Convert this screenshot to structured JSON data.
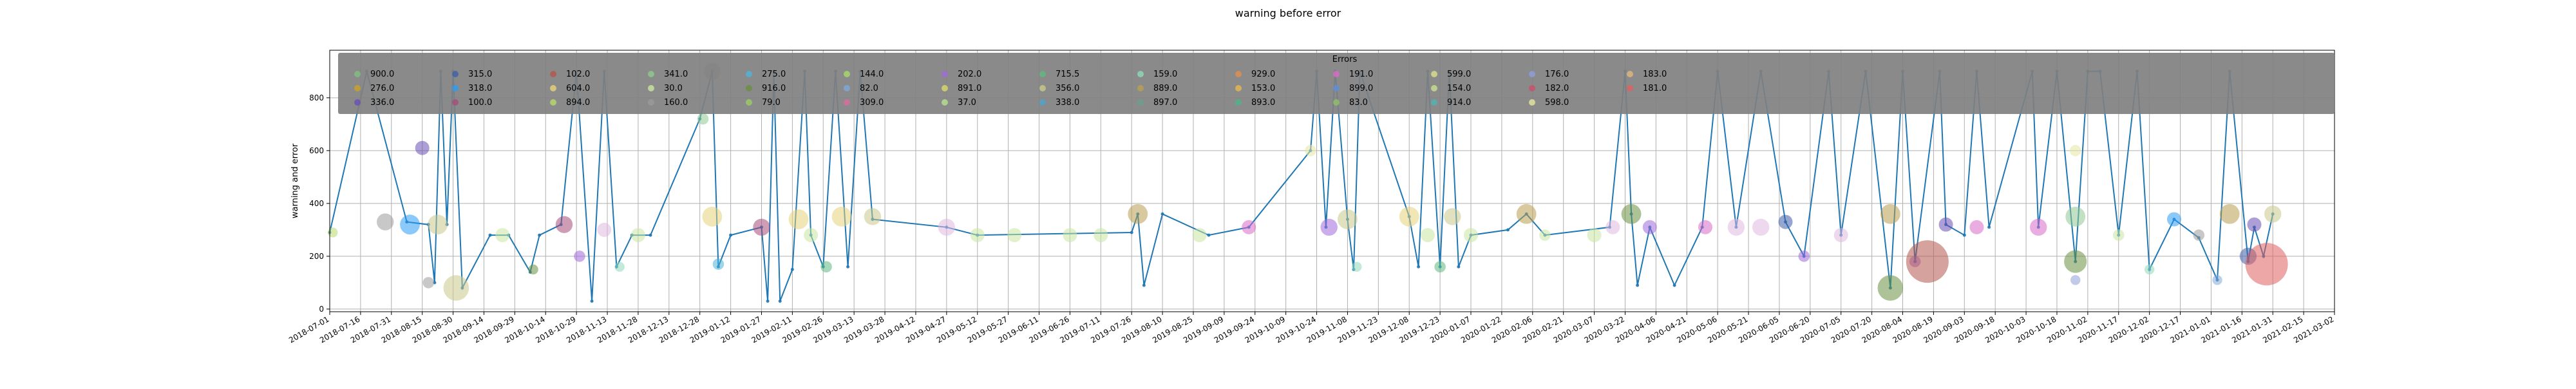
{
  "chart_data": {
    "type": "scatter",
    "title": "warning before error",
    "xlabel": "",
    "ylabel": "warning and error",
    "ylim": [
      -10,
      980
    ],
    "y_ticks": [
      0,
      200,
      400,
      600,
      800
    ],
    "grid": true,
    "legend_title": "Errors",
    "legend_position": "top-center",
    "x_tick_labels": [
      "2018-07-01",
      "2018-07-16",
      "2018-07-31",
      "2018-08-15",
      "2018-08-30",
      "2018-09-14",
      "2018-09-29",
      "2018-10-14",
      "2018-10-29",
      "2018-11-13",
      "2018-11-28",
      "2018-12-13",
      "2018-12-28",
      "2019-01-12",
      "2019-01-27",
      "2019-02-11",
      "2019-02-26",
      "2019-03-13",
      "2019-03-28",
      "2019-04-12",
      "2019-04-27",
      "2019-05-12",
      "2019-05-27",
      "2019-06-11",
      "2019-06-26",
      "2019-07-11",
      "2019-07-26",
      "2019-08-10",
      "2019-08-25",
      "2019-09-09",
      "2019-09-24",
      "2019-10-09",
      "2019-10-24",
      "2019-11-08",
      "2019-11-23",
      "2019-12-08",
      "2019-12-23",
      "2020-01-07",
      "2020-01-22",
      "2020-02-06",
      "2020-02-21",
      "2020-03-07",
      "2020-03-22",
      "2020-04-06",
      "2020-04-21",
      "2020-05-06",
      "2020-05-21",
      "2020-06-05",
      "2020-06-20",
      "2020-07-05",
      "2020-07-20",
      "2020-08-04",
      "2020-08-19",
      "2020-09-03",
      "2020-09-18",
      "2020-10-03",
      "2020-10-18",
      "2020-11-02",
      "2020-11-17",
      "2020-12-02",
      "2020-12-17",
      "2021-01-01",
      "2021-01-16",
      "2021-01-31",
      "2021-02-15",
      "2021-03-02"
    ],
    "legend_entries": [
      {
        "label": "900.0",
        "color": "#7fbf7f"
      },
      {
        "label": "276.0",
        "color": "#c9a227"
      },
      {
        "label": "336.0",
        "color": "#6a4fb3"
      },
      {
        "label": "315.0",
        "color": "#3f5fa8"
      },
      {
        "label": "318.0",
        "color": "#2a9df4"
      },
      {
        "label": "100.0",
        "color": "#a64d79"
      },
      {
        "label": "102.0",
        "color": "#b3564d"
      },
      {
        "label": "604.0",
        "color": "#e6d27a"
      },
      {
        "label": "894.0",
        "color": "#b8d96b"
      },
      {
        "label": "341.0",
        "color": "#8fc98f"
      },
      {
        "label": "30.0",
        "color": "#c8e6a0"
      },
      {
        "label": "160.0",
        "color": "#9a9a9a"
      },
      {
        "label": "275.0",
        "color": "#4fb3d9"
      },
      {
        "label": "916.0",
        "color": "#6a8f3f"
      },
      {
        "label": "79.0",
        "color": "#9ccc65"
      },
      {
        "label": "144.0",
        "color": "#a6d96a"
      },
      {
        "label": "82.0",
        "color": "#7fa8d9"
      },
      {
        "label": "309.0",
        "color": "#d96aa0"
      },
      {
        "label": "202.0",
        "color": "#9f6ad9"
      },
      {
        "label": "891.0",
        "color": "#d9d96a"
      },
      {
        "label": "37.0",
        "color": "#b8e08f"
      },
      {
        "label": "715.5",
        "color": "#5fb87f"
      },
      {
        "label": "356.0",
        "color": "#c9c98a"
      },
      {
        "label": "338.0",
        "color": "#4fa3c9"
      },
      {
        "label": "159.0",
        "color": "#8fd9b8"
      },
      {
        "label": "889.0",
        "color": "#b89f4f"
      },
      {
        "label": "897.0",
        "color": "#6a9f8f"
      },
      {
        "label": "929.0",
        "color": "#e08f4f"
      },
      {
        "label": "153.0",
        "color": "#e6b84f"
      },
      {
        "label": "893.0",
        "color": "#4fb38a"
      },
      {
        "label": "191.0",
        "color": "#d96acb"
      },
      {
        "label": "899.0",
        "color": "#5f8fd9"
      },
      {
        "label": "83.0",
        "color": "#8fbf6a"
      },
      {
        "label": "599.0",
        "color": "#d9e08f"
      },
      {
        "label": "154.0",
        "color": "#c9e08f"
      },
      {
        "label": "914.0",
        "color": "#4fb3b3"
      },
      {
        "label": "176.0",
        "color": "#8f9fd9"
      },
      {
        "label": "182.0",
        "color": "#c94f6a"
      },
      {
        "label": "598.0",
        "color": "#e6e6a0"
      },
      {
        "label": "183.0",
        "color": "#e0b87f"
      },
      {
        "label": "181.0",
        "color": "#e05f5f"
      }
    ],
    "series": [
      {
        "name": "warning_line",
        "color": "#1f77b4",
        "points": [
          {
            "x": 0.0,
            "y": 290
          },
          {
            "x": 1.2,
            "y": 900
          },
          {
            "x": 2.5,
            "y": 330
          },
          {
            "x": 3.2,
            "y": 320
          },
          {
            "x": 3.4,
            "y": 100
          },
          {
            "x": 3.6,
            "y": 900
          },
          {
            "x": 3.8,
            "y": 320
          },
          {
            "x": 4.0,
            "y": 900
          },
          {
            "x": 4.3,
            "y": 80
          },
          {
            "x": 5.2,
            "y": 280
          },
          {
            "x": 5.8,
            "y": 280
          },
          {
            "x": 6.5,
            "y": 140
          },
          {
            "x": 6.8,
            "y": 280
          },
          {
            "x": 7.5,
            "y": 320
          },
          {
            "x": 8.0,
            "y": 900
          },
          {
            "x": 8.5,
            "y": 30
          },
          {
            "x": 8.9,
            "y": 900
          },
          {
            "x": 9.3,
            "y": 160
          },
          {
            "x": 9.8,
            "y": 280
          },
          {
            "x": 10.4,
            "y": 280
          },
          {
            "x": 12.0,
            "y": 720
          },
          {
            "x": 12.4,
            "y": 900
          },
          {
            "x": 12.6,
            "y": 160
          },
          {
            "x": 13.0,
            "y": 280
          },
          {
            "x": 14.0,
            "y": 310
          },
          {
            "x": 14.2,
            "y": 30
          },
          {
            "x": 14.4,
            "y": 900
          },
          {
            "x": 14.6,
            "y": 30
          },
          {
            "x": 15.0,
            "y": 150
          },
          {
            "x": 15.4,
            "y": 900
          },
          {
            "x": 15.6,
            "y": 280
          },
          {
            "x": 16.0,
            "y": 160
          },
          {
            "x": 16.4,
            "y": 900
          },
          {
            "x": 16.8,
            "y": 160
          },
          {
            "x": 17.2,
            "y": 900
          },
          {
            "x": 17.6,
            "y": 340
          },
          {
            "x": 20.0,
            "y": 310
          },
          {
            "x": 21.0,
            "y": 280
          },
          {
            "x": 26.0,
            "y": 290
          },
          {
            "x": 26.2,
            "y": 360
          },
          {
            "x": 26.4,
            "y": 90
          },
          {
            "x": 27.0,
            "y": 360
          },
          {
            "x": 28.5,
            "y": 280
          },
          {
            "x": 29.8,
            "y": 310
          },
          {
            "x": 31.8,
            "y": 600
          },
          {
            "x": 32.0,
            "y": 900
          },
          {
            "x": 32.3,
            "y": 310
          },
          {
            "x": 32.6,
            "y": 900
          },
          {
            "x": 33.0,
            "y": 340
          },
          {
            "x": 33.2,
            "y": 150
          },
          {
            "x": 33.4,
            "y": 900
          },
          {
            "x": 35.0,
            "y": 350
          },
          {
            "x": 35.3,
            "y": 160
          },
          {
            "x": 35.6,
            "y": 900
          },
          {
            "x": 36.0,
            "y": 160
          },
          {
            "x": 36.3,
            "y": 900
          },
          {
            "x": 36.6,
            "y": 160
          },
          {
            "x": 37.0,
            "y": 280
          },
          {
            "x": 38.2,
            "y": 300
          },
          {
            "x": 38.8,
            "y": 360
          },
          {
            "x": 39.4,
            "y": 280
          },
          {
            "x": 41.5,
            "y": 310
          },
          {
            "x": 42.0,
            "y": 900
          },
          {
            "x": 42.2,
            "y": 360
          },
          {
            "x": 42.4,
            "y": 90
          },
          {
            "x": 42.8,
            "y": 310
          },
          {
            "x": 43.6,
            "y": 90
          },
          {
            "x": 44.5,
            "y": 310
          },
          {
            "x": 45.0,
            "y": 900
          },
          {
            "x": 45.6,
            "y": 310
          },
          {
            "x": 46.4,
            "y": 900
          },
          {
            "x": 47.2,
            "y": 330
          },
          {
            "x": 47.8,
            "y": 200
          },
          {
            "x": 48.6,
            "y": 900
          },
          {
            "x": 49.0,
            "y": 280
          },
          {
            "x": 49.8,
            "y": 900
          },
          {
            "x": 50.6,
            "y": 80
          },
          {
            "x": 51.0,
            "y": 900
          },
          {
            "x": 51.4,
            "y": 180
          },
          {
            "x": 52.2,
            "y": 900
          },
          {
            "x": 52.4,
            "y": 320
          },
          {
            "x": 53.0,
            "y": 280
          },
          {
            "x": 53.4,
            "y": 900
          },
          {
            "x": 53.8,
            "y": 310
          },
          {
            "x": 55.2,
            "y": 900
          },
          {
            "x": 55.4,
            "y": 310
          },
          {
            "x": 56.0,
            "y": 900
          },
          {
            "x": 56.6,
            "y": 180
          },
          {
            "x": 57.0,
            "y": 900
          },
          {
            "x": 57.4,
            "y": 900
          },
          {
            "x": 58.0,
            "y": 280
          },
          {
            "x": 58.6,
            "y": 900
          },
          {
            "x": 59.0,
            "y": 150
          },
          {
            "x": 59.8,
            "y": 340
          },
          {
            "x": 60.6,
            "y": 270
          },
          {
            "x": 61.2,
            "y": 110
          },
          {
            "x": 61.6,
            "y": 900
          },
          {
            "x": 62.2,
            "y": 180
          },
          {
            "x": 62.4,
            "y": 310
          },
          {
            "x": 62.7,
            "y": 200
          },
          {
            "x": 63.0,
            "y": 360
          }
        ]
      }
    ],
    "bubbles": [
      {
        "x": 0.1,
        "y": 290,
        "r": 7,
        "color": "#b8d96b"
      },
      {
        "x": 1.8,
        "y": 330,
        "r": 12,
        "color": "#9a9a9a"
      },
      {
        "x": 2.6,
        "y": 320,
        "r": 14,
        "color": "#2a9df4"
      },
      {
        "x": 3.0,
        "y": 610,
        "r": 10,
        "color": "#6a4fb3"
      },
      {
        "x": 3.2,
        "y": 100,
        "r": 8,
        "color": "#9a9a9a"
      },
      {
        "x": 3.5,
        "y": 320,
        "r": 14,
        "color": "#c9c98a"
      },
      {
        "x": 4.1,
        "y": 80,
        "r": 18,
        "color": "#c9c98a"
      },
      {
        "x": 5.6,
        "y": 280,
        "r": 10,
        "color": "#c8e6a0"
      },
      {
        "x": 6.6,
        "y": 150,
        "r": 7,
        "color": "#6a8f3f"
      },
      {
        "x": 7.6,
        "y": 320,
        "r": 12,
        "color": "#a64d79"
      },
      {
        "x": 8.1,
        "y": 200,
        "r": 8,
        "color": "#9f6ad9"
      },
      {
        "x": 8.9,
        "y": 300,
        "r": 10,
        "color": "#e0b8e0"
      },
      {
        "x": 9.4,
        "y": 160,
        "r": 7,
        "color": "#8fd9b8"
      },
      {
        "x": 10.0,
        "y": 280,
        "r": 10,
        "color": "#c8e6a0"
      },
      {
        "x": 12.1,
        "y": 720,
        "r": 8,
        "color": "#8fc98f"
      },
      {
        "x": 12.4,
        "y": 900,
        "r": 12,
        "color": "#9a9a9a"
      },
      {
        "x": 12.4,
        "y": 350,
        "r": 14,
        "color": "#e6d27a"
      },
      {
        "x": 12.6,
        "y": 170,
        "r": 8,
        "color": "#4fb3d9"
      },
      {
        "x": 14.0,
        "y": 310,
        "r": 12,
        "color": "#a64d79"
      },
      {
        "x": 15.2,
        "y": 340,
        "r": 14,
        "color": "#e6d27a"
      },
      {
        "x": 15.6,
        "y": 280,
        "r": 10,
        "color": "#c8e6a0"
      },
      {
        "x": 16.1,
        "y": 160,
        "r": 8,
        "color": "#5fb87f"
      },
      {
        "x": 16.6,
        "y": 350,
        "r": 14,
        "color": "#e6d27a"
      },
      {
        "x": 17.6,
        "y": 350,
        "r": 12,
        "color": "#c9c98a"
      },
      {
        "x": 20.0,
        "y": 310,
        "r": 12,
        "color": "#e0b8e0"
      },
      {
        "x": 21.0,
        "y": 280,
        "r": 10,
        "color": "#c8e6a0"
      },
      {
        "x": 22.2,
        "y": 280,
        "r": 10,
        "color": "#c8e6a0"
      },
      {
        "x": 24.0,
        "y": 280,
        "r": 10,
        "color": "#c8e6a0"
      },
      {
        "x": 25.0,
        "y": 280,
        "r": 10,
        "color": "#c8e6a0"
      },
      {
        "x": 26.2,
        "y": 360,
        "r": 14,
        "color": "#b89f4f"
      },
      {
        "x": 28.2,
        "y": 280,
        "r": 10,
        "color": "#c8e6a0"
      },
      {
        "x": 29.8,
        "y": 310,
        "r": 10,
        "color": "#d96acb"
      },
      {
        "x": 31.8,
        "y": 600,
        "r": 8,
        "color": "#e6e6a0"
      },
      {
        "x": 32.4,
        "y": 310,
        "r": 12,
        "color": "#9f6ad9"
      },
      {
        "x": 33.0,
        "y": 340,
        "r": 14,
        "color": "#c9c98a"
      },
      {
        "x": 33.3,
        "y": 160,
        "r": 7,
        "color": "#8fd9b8"
      },
      {
        "x": 35.0,
        "y": 350,
        "r": 14,
        "color": "#e6d27a"
      },
      {
        "x": 35.6,
        "y": 280,
        "r": 10,
        "color": "#c8e6a0"
      },
      {
        "x": 36.0,
        "y": 160,
        "r": 8,
        "color": "#5fb87f"
      },
      {
        "x": 36.4,
        "y": 350,
        "r": 12,
        "color": "#c9c98a"
      },
      {
        "x": 37.0,
        "y": 280,
        "r": 10,
        "color": "#c8e6a0"
      },
      {
        "x": 38.8,
        "y": 360,
        "r": 14,
        "color": "#b89f4f"
      },
      {
        "x": 39.4,
        "y": 280,
        "r": 8,
        "color": "#c8e6a0"
      },
      {
        "x": 41.0,
        "y": 280,
        "r": 10,
        "color": "#c8e6a0"
      },
      {
        "x": 41.6,
        "y": 310,
        "r": 10,
        "color": "#e0b8e0"
      },
      {
        "x": 42.2,
        "y": 360,
        "r": 14,
        "color": "#6a8f3f"
      },
      {
        "x": 42.8,
        "y": 310,
        "r": 10,
        "color": "#9f6ad9"
      },
      {
        "x": 44.6,
        "y": 310,
        "r": 10,
        "color": "#d96acb"
      },
      {
        "x": 45.6,
        "y": 310,
        "r": 12,
        "color": "#e0b8e0"
      },
      {
        "x": 46.4,
        "y": 310,
        "r": 12,
        "color": "#e0b8e0"
      },
      {
        "x": 47.2,
        "y": 330,
        "r": 10,
        "color": "#3f5fa8"
      },
      {
        "x": 47.8,
        "y": 200,
        "r": 8,
        "color": "#9f6ad9"
      },
      {
        "x": 49.0,
        "y": 280,
        "r": 10,
        "color": "#e0b8e0"
      },
      {
        "x": 50.6,
        "y": 80,
        "r": 18,
        "color": "#6a8f3f"
      },
      {
        "x": 50.6,
        "y": 360,
        "r": 14,
        "color": "#b89f4f"
      },
      {
        "x": 51.4,
        "y": 180,
        "r": 8,
        "color": "#9f6ad9"
      },
      {
        "x": 51.8,
        "y": 180,
        "r": 30,
        "color": "#b3564d"
      },
      {
        "x": 52.4,
        "y": 320,
        "r": 10,
        "color": "#6a4fb3"
      },
      {
        "x": 53.4,
        "y": 310,
        "r": 10,
        "color": "#d96acb"
      },
      {
        "x": 55.4,
        "y": 310,
        "r": 12,
        "color": "#d96acb"
      },
      {
        "x": 56.6,
        "y": 350,
        "r": 14,
        "color": "#8fc98f"
      },
      {
        "x": 56.6,
        "y": 180,
        "r": 16,
        "color": "#6a8f3f"
      },
      {
        "x": 56.6,
        "y": 600,
        "r": 8,
        "color": "#e6e6a0"
      },
      {
        "x": 56.6,
        "y": 110,
        "r": 7,
        "color": "#8f9fd9"
      },
      {
        "x": 58.0,
        "y": 280,
        "r": 8,
        "color": "#c8e6a0"
      },
      {
        "x": 59.0,
        "y": 150,
        "r": 7,
        "color": "#8fd9b8"
      },
      {
        "x": 59.8,
        "y": 340,
        "r": 10,
        "color": "#2a9df4"
      },
      {
        "x": 60.6,
        "y": 280,
        "r": 8,
        "color": "#9a9a9a"
      },
      {
        "x": 61.2,
        "y": 110,
        "r": 7,
        "color": "#7fa8d9"
      },
      {
        "x": 61.6,
        "y": 360,
        "r": 14,
        "color": "#b89f4f"
      },
      {
        "x": 62.2,
        "y": 200,
        "r": 12,
        "color": "#3f5fa8"
      },
      {
        "x": 62.4,
        "y": 320,
        "r": 10,
        "color": "#6a4fb3"
      },
      {
        "x": 62.8,
        "y": 170,
        "r": 30,
        "color": "#e05f5f"
      },
      {
        "x": 63.0,
        "y": 360,
        "r": 12,
        "color": "#c9c98a"
      }
    ]
  }
}
